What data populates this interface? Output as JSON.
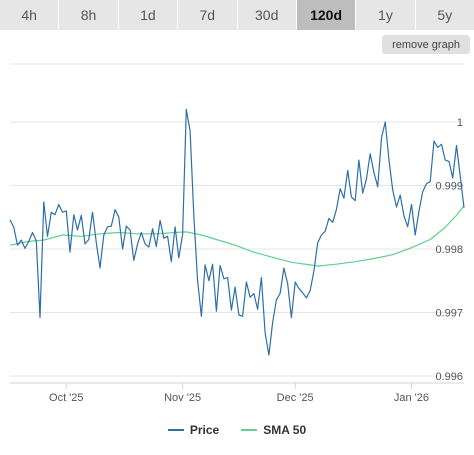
{
  "tabs": [
    {
      "label": "4h",
      "active": false
    },
    {
      "label": "8h",
      "active": false
    },
    {
      "label": "1d",
      "active": false
    },
    {
      "label": "7d",
      "active": false
    },
    {
      "label": "30d",
      "active": false
    },
    {
      "label": "120d",
      "active": true
    },
    {
      "label": "1y",
      "active": false
    },
    {
      "label": "5y",
      "active": false
    }
  ],
  "remove_graph_label": "remove graph",
  "colors": {
    "price": "#2e6fa6",
    "sma": "#5fd08d",
    "grid": "#e6e6e6"
  },
  "chart_data": {
    "type": "line",
    "title": "",
    "xlabel": "",
    "ylabel": "",
    "ylim": [
      0.996,
      1.0
    ],
    "y_ticks": [
      0.996,
      0.997,
      0.998,
      0.999,
      1
    ],
    "y_tick_labels": [
      "0.996",
      "0.997",
      "0.998",
      "0.999",
      "1"
    ],
    "x_range": [
      "2025-09-16",
      "2026-01-15"
    ],
    "x_ticks": [
      {
        "date": "2025-10-01",
        "label": "Oct '25"
      },
      {
        "date": "2025-11-01",
        "label": "Nov '25"
      },
      {
        "date": "2025-12-01",
        "label": "Dec '25"
      },
      {
        "date": "2026-01-01",
        "label": "Jan '26"
      }
    ],
    "grid": true,
    "legend_position": "bottom",
    "series": [
      {
        "name": "Price",
        "points": [
          [
            "2025-09-16",
            0.99846
          ],
          [
            "2025-09-17",
            0.99834
          ],
          [
            "2025-09-18",
            0.99806
          ],
          [
            "2025-09-19",
            0.99814
          ],
          [
            "2025-09-20",
            0.99801
          ],
          [
            "2025-09-21",
            0.99812
          ],
          [
            "2025-09-22",
            0.99826
          ],
          [
            "2025-09-23",
            0.99813
          ],
          [
            "2025-09-24",
            0.99692
          ],
          [
            "2025-09-25",
            0.99874
          ],
          [
            "2025-09-26",
            0.9982
          ],
          [
            "2025-09-27",
            0.99858
          ],
          [
            "2025-09-28",
            0.99854
          ],
          [
            "2025-09-29",
            0.9987
          ],
          [
            "2025-09-30",
            0.99858
          ],
          [
            "2025-10-01",
            0.9986
          ],
          [
            "2025-10-02",
            0.99795
          ],
          [
            "2025-10-03",
            0.99854
          ],
          [
            "2025-10-04",
            0.9983
          ],
          [
            "2025-10-05",
            0.99853
          ],
          [
            "2025-10-06",
            0.99808
          ],
          [
            "2025-10-07",
            0.99815
          ],
          [
            "2025-10-08",
            0.99858
          ],
          [
            "2025-10-09",
            0.9981
          ],
          [
            "2025-10-10",
            0.9977
          ],
          [
            "2025-10-11",
            0.99822
          ],
          [
            "2025-10-12",
            0.99835
          ],
          [
            "2025-10-13",
            0.99836
          ],
          [
            "2025-10-14",
            0.99862
          ],
          [
            "2025-10-15",
            0.9985
          ],
          [
            "2025-10-16",
            0.998
          ],
          [
            "2025-10-17",
            0.99836
          ],
          [
            "2025-10-18",
            0.9983
          ],
          [
            "2025-10-19",
            0.99782
          ],
          [
            "2025-10-20",
            0.99808
          ],
          [
            "2025-10-21",
            0.99826
          ],
          [
            "2025-10-22",
            0.99808
          ],
          [
            "2025-10-23",
            0.99803
          ],
          [
            "2025-10-24",
            0.99832
          ],
          [
            "2025-10-25",
            0.99804
          ],
          [
            "2025-10-26",
            0.99845
          ],
          [
            "2025-10-27",
            0.99817
          ],
          [
            "2025-10-28",
            0.9982
          ],
          [
            "2025-10-29",
            0.9978
          ],
          [
            "2025-10-30",
            0.99835
          ],
          [
            "2025-10-31",
            0.99786
          ],
          [
            "2025-11-01",
            0.99823
          ],
          [
            "2025-11-02",
            1.0002
          ],
          [
            "2025-11-03",
            0.99986
          ],
          [
            "2025-11-04",
            0.9985
          ],
          [
            "2025-11-05",
            0.9975
          ],
          [
            "2025-11-06",
            0.99694
          ],
          [
            "2025-11-07",
            0.99775
          ],
          [
            "2025-11-08",
            0.9975
          ],
          [
            "2025-11-09",
            0.99776
          ],
          [
            "2025-11-10",
            0.99702
          ],
          [
            "2025-11-11",
            0.99774
          ],
          [
            "2025-11-12",
            0.99753
          ],
          [
            "2025-11-13",
            0.99755
          ],
          [
            "2025-11-14",
            0.99704
          ],
          [
            "2025-11-15",
            0.9974
          ],
          [
            "2025-11-16",
            0.99696
          ],
          [
            "2025-11-17",
            0.99694
          ],
          [
            "2025-11-18",
            0.99748
          ],
          [
            "2025-11-19",
            0.99724
          ],
          [
            "2025-11-20",
            0.9973
          ],
          [
            "2025-11-21",
            0.99705
          ],
          [
            "2025-11-22",
            0.99755
          ],
          [
            "2025-11-23",
            0.99668
          ],
          [
            "2025-11-24",
            0.99633
          ],
          [
            "2025-11-25",
            0.99684
          ],
          [
            "2025-11-26",
            0.9972
          ],
          [
            "2025-11-27",
            0.9973
          ],
          [
            "2025-11-28",
            0.9977
          ],
          [
            "2025-11-29",
            0.99745
          ],
          [
            "2025-11-30",
            0.99692
          ],
          [
            "2025-12-01",
            0.99748
          ],
          [
            "2025-12-02",
            0.99738
          ],
          [
            "2025-12-03",
            0.99731
          ],
          [
            "2025-12-04",
            0.99723
          ],
          [
            "2025-12-05",
            0.99735
          ],
          [
            "2025-12-06",
            0.99765
          ],
          [
            "2025-12-07",
            0.9981
          ],
          [
            "2025-12-08",
            0.99822
          ],
          [
            "2025-12-09",
            0.99828
          ],
          [
            "2025-12-10",
            0.99848
          ],
          [
            "2025-12-11",
            0.99842
          ],
          [
            "2025-12-12",
            0.99862
          ],
          [
            "2025-12-13",
            0.99895
          ],
          [
            "2025-12-14",
            0.9988
          ],
          [
            "2025-12-15",
            0.99924
          ],
          [
            "2025-12-16",
            0.99882
          ],
          [
            "2025-12-17",
            0.99876
          ],
          [
            "2025-12-18",
            0.9994
          ],
          [
            "2025-12-19",
            0.99888
          ],
          [
            "2025-12-20",
            0.9991
          ],
          [
            "2025-12-21",
            0.9995
          ],
          [
            "2025-12-22",
            0.9992
          ],
          [
            "2025-12-23",
            0.99898
          ],
          [
            "2025-12-24",
            0.99975
          ],
          [
            "2025-12-25",
            1.0
          ],
          [
            "2025-12-26",
            0.9994
          ],
          [
            "2025-12-27",
            0.99893
          ],
          [
            "2025-12-28",
            0.99866
          ],
          [
            "2025-12-29",
            0.99885
          ],
          [
            "2025-12-30",
            0.99852
          ],
          [
            "2025-12-31",
            0.99835
          ],
          [
            "2026-01-01",
            0.9987
          ],
          [
            "2026-01-02",
            0.99822
          ],
          [
            "2026-01-03",
            0.9986
          ],
          [
            "2026-01-04",
            0.9989
          ],
          [
            "2026-01-05",
            0.99903
          ],
          [
            "2026-01-06",
            0.99906
          ],
          [
            "2026-01-07",
            0.9997
          ],
          [
            "2026-01-08",
            0.9996
          ],
          [
            "2026-01-09",
            0.99965
          ],
          [
            "2026-01-10",
            0.9994
          ],
          [
            "2026-01-11",
            0.99938
          ],
          [
            "2026-01-12",
            0.99912
          ],
          [
            "2026-01-13",
            0.99963
          ],
          [
            "2026-01-14",
            0.99915
          ],
          [
            "2026-01-15",
            0.99865
          ]
        ]
      },
      {
        "name": "SMA 50",
        "points": [
          [
            "2025-09-16",
            0.99806
          ],
          [
            "2025-09-21",
            0.99812
          ],
          [
            "2025-09-25",
            0.99814
          ],
          [
            "2025-09-30",
            0.99822
          ],
          [
            "2025-10-05",
            0.9982
          ],
          [
            "2025-10-10",
            0.99824
          ],
          [
            "2025-10-15",
            0.99826
          ],
          [
            "2025-10-20",
            0.99824
          ],
          [
            "2025-10-25",
            0.99824
          ],
          [
            "2025-10-30",
            0.99826
          ],
          [
            "2025-11-02",
            0.99827
          ],
          [
            "2025-11-06",
            0.99822
          ],
          [
            "2025-11-10",
            0.99815
          ],
          [
            "2025-11-15",
            0.99806
          ],
          [
            "2025-11-20",
            0.99795
          ],
          [
            "2025-11-25",
            0.99787
          ],
          [
            "2025-11-30",
            0.99779
          ],
          [
            "2025-12-05",
            0.99775
          ],
          [
            "2025-12-07",
            0.99773
          ],
          [
            "2025-12-12",
            0.99776
          ],
          [
            "2025-12-17",
            0.9978
          ],
          [
            "2025-12-22",
            0.99785
          ],
          [
            "2025-12-27",
            0.99791
          ],
          [
            "2026-01-01",
            0.99802
          ],
          [
            "2026-01-06",
            0.99815
          ],
          [
            "2026-01-10",
            0.99834
          ],
          [
            "2026-01-13",
            0.99853
          ],
          [
            "2026-01-15",
            0.99868
          ]
        ]
      }
    ]
  }
}
